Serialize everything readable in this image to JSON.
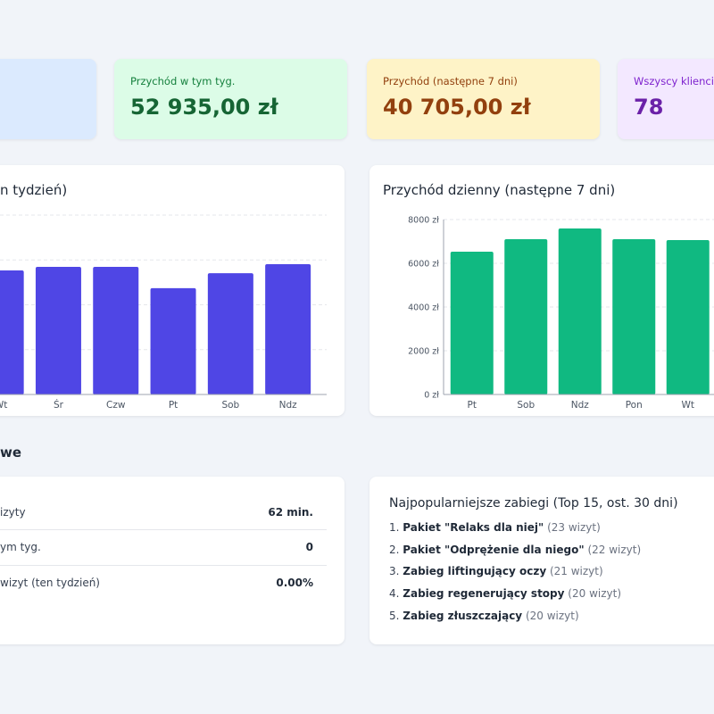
{
  "stats": [
    {
      "label": "Przychód w tym tyg.",
      "value": "52 935,00 zł"
    },
    {
      "label": "Przychód (następne 7 dni)",
      "value": "40 705,00 zł"
    },
    {
      "label": "Wszyscy klienci",
      "value": "78"
    }
  ],
  "chart_data": [
    {
      "type": "bar",
      "title": "n tydzień)",
      "categories": [
        "Wt",
        "Śr",
        "Czw",
        "Pt",
        "Sob",
        "Ndz"
      ],
      "values": [
        5530,
        5690,
        5690,
        4740,
        5410,
        5810
      ],
      "color": "#4f46e5",
      "ylim": [
        0,
        8000
      ],
      "yticks": [
        0,
        2000,
        4000,
        6000,
        8000
      ],
      "grid": true
    },
    {
      "type": "bar",
      "title": "Przychód dzienny (następne 7 dni)",
      "categories": [
        "Pt",
        "Sob",
        "Ndz",
        "Pon",
        "Wt"
      ],
      "values": [
        6530,
        7100,
        7590,
        7100,
        7060
      ],
      "color": "#10b981",
      "ylim": [
        0,
        8000
      ],
      "yticks": [
        {
          "value": 0,
          "label": "0 zł"
        },
        {
          "value": 2000,
          "label": "2000 zł"
        },
        {
          "value": 4000,
          "label": "4000 zł"
        },
        {
          "value": 6000,
          "label": "6000 zł"
        },
        {
          "value": 8000,
          "label": "8000 zł"
        }
      ],
      "grid": true
    }
  ],
  "section_title": "we",
  "summary_rows": [
    [
      "izyty",
      "62 min."
    ],
    [
      "ym tyg.",
      "0"
    ],
    [
      "wizyt (ten tydzień)",
      "0.00%"
    ]
  ],
  "popular": {
    "title": "Najpopularniejsze zabiegi (Top 15, ost. 30 dni)",
    "items": [
      {
        "name": "Pakiet \"Relaks dla niej\"",
        "count": "(23 wizyt)"
      },
      {
        "name": "Pakiet \"Odprężenie dla niego\"",
        "count": "(22 wizyt)"
      },
      {
        "name": "Zabieg liftingujący oczy",
        "count": "(21 wizyt)"
      },
      {
        "name": "Zabieg regenerujący stopy",
        "count": "(20 wizyt)"
      },
      {
        "name": "Zabieg złuszczający",
        "count": "(20 wizyt)"
      }
    ]
  }
}
